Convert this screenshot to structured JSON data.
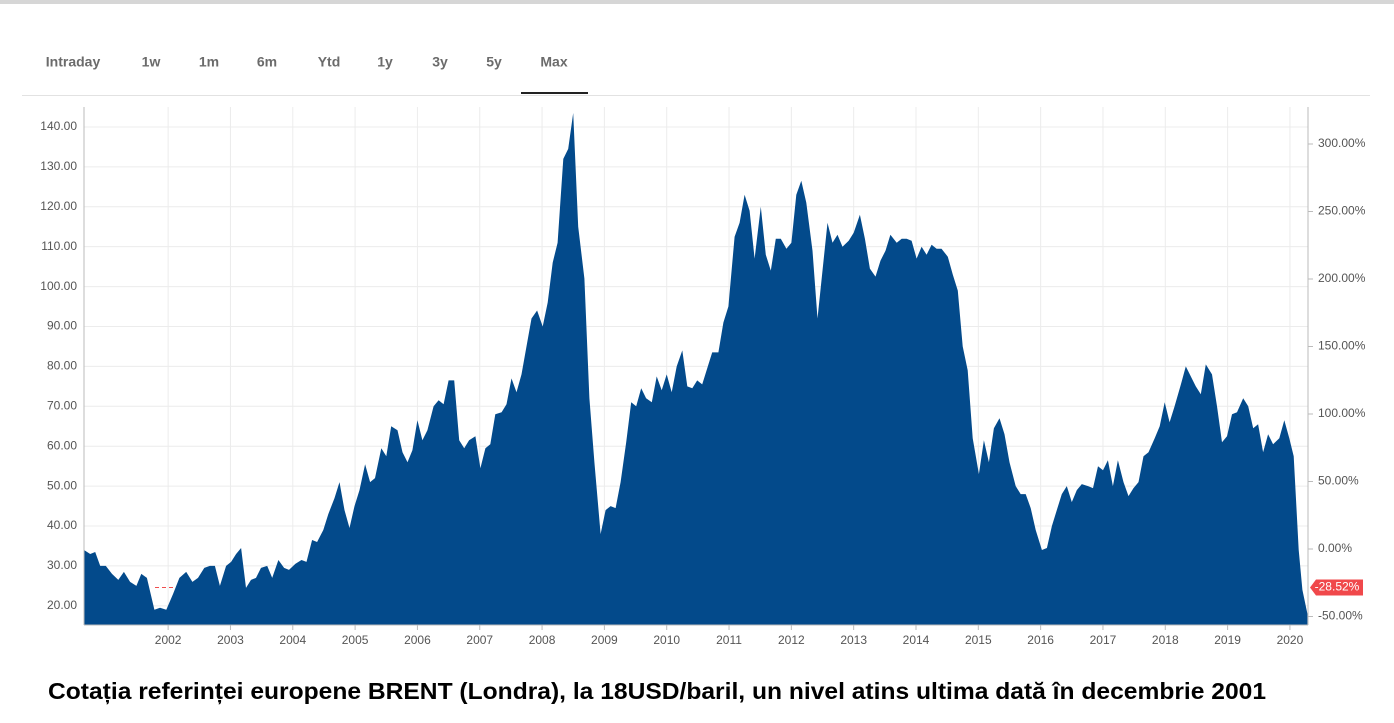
{
  "tabs": [
    "Intraday",
    "1w",
    "1m",
    "6m",
    "Ytd",
    "1y",
    "3y",
    "5y",
    "Max"
  ],
  "active_tab_index": 8,
  "chart_data": {
    "type": "area",
    "color": "#034a8b",
    "x": [
      2000.65,
      2000.75,
      2000.83,
      2000.91,
      2001.0,
      2001.1,
      2001.2,
      2001.29,
      2001.39,
      2001.49,
      2001.57,
      2001.66,
      2001.78,
      2001.87,
      2001.97,
      2002.08,
      2002.18,
      2002.29,
      2002.39,
      2002.48,
      2002.58,
      2002.67,
      2002.75,
      2002.83,
      2002.93,
      2003.01,
      2003.09,
      2003.17,
      2003.25,
      2003.33,
      2003.41,
      2003.49,
      2003.59,
      2003.67,
      2003.77,
      2003.86,
      2003.94,
      2004.04,
      2004.14,
      2004.22,
      2004.31,
      2004.39,
      2004.49,
      2004.57,
      2004.67,
      2004.75,
      2004.83,
      2004.91,
      2004.99,
      2005.07,
      2005.16,
      2005.24,
      2005.32,
      2005.42,
      2005.5,
      2005.58,
      2005.68,
      2005.76,
      2005.84,
      2005.92,
      2006.0,
      2006.08,
      2006.16,
      2006.26,
      2006.34,
      2006.42,
      2006.5,
      2006.59,
      2006.67,
      2006.75,
      2006.83,
      2006.93,
      2007.01,
      2007.09,
      2007.17,
      2007.25,
      2007.35,
      2007.43,
      2007.51,
      2007.59,
      2007.67,
      2007.75,
      2007.83,
      2007.92,
      2008.01,
      2008.09,
      2008.17,
      2008.25,
      2008.34,
      2008.42,
      2008.5,
      2008.58,
      2008.68,
      2008.76,
      2008.84,
      2008.94,
      2009.02,
      2009.1,
      2009.18,
      2009.26,
      2009.35,
      2009.43,
      2009.51,
      2009.59,
      2009.67,
      2009.76,
      2009.84,
      2009.92,
      2010.0,
      2010.08,
      2010.16,
      2010.25,
      2010.33,
      2010.41,
      2010.49,
      2010.57,
      2010.65,
      2010.73,
      2010.83,
      2010.91,
      2010.99,
      2011.09,
      2011.17,
      2011.25,
      2011.33,
      2011.41,
      2011.51,
      2011.59,
      2011.67,
      2011.75,
      2011.83,
      2011.92,
      2012.0,
      2012.08,
      2012.16,
      2012.24,
      2012.34,
      2012.42,
      2012.5,
      2012.58,
      2012.66,
      2012.74,
      2012.82,
      2012.92,
      2013.0,
      2013.1,
      2013.18,
      2013.26,
      2013.35,
      2013.43,
      2013.51,
      2013.59,
      2013.69,
      2013.77,
      2013.85,
      2013.93,
      2014.01,
      2014.09,
      2014.17,
      2014.25,
      2014.33,
      2014.41,
      2014.51,
      2014.59,
      2014.67,
      2014.75,
      2014.83,
      2014.91,
      2015.01,
      2015.09,
      2015.17,
      2015.25,
      2015.34,
      2015.42,
      2015.5,
      2015.6,
      2015.68,
      2015.76,
      2015.84,
      2015.92,
      2016.02,
      2016.1,
      2016.18,
      2016.26,
      2016.34,
      2016.42,
      2016.5,
      2016.58,
      2016.66,
      2016.76,
      2016.84,
      2016.92,
      2017.0,
      2017.08,
      2017.16,
      2017.24,
      2017.33,
      2017.41,
      2017.49,
      2017.57,
      2017.65,
      2017.73,
      2017.83,
      2017.91,
      2017.99,
      2018.07,
      2018.15,
      2018.25,
      2018.33,
      2018.41,
      2018.49,
      2018.57,
      2018.65,
      2018.75,
      2018.83,
      2018.91,
      2018.99,
      2019.07,
      2019.15,
      2019.25,
      2019.33,
      2019.41,
      2019.49,
      2019.57,
      2019.65,
      2019.73,
      2019.83,
      2019.91,
      2019.99,
      2020.06,
      2020.14,
      2020.2,
      2020.28
    ],
    "values": [
      34,
      33,
      33.5,
      30,
      30,
      28,
      26.5,
      28.5,
      26,
      25,
      28,
      27,
      19,
      19.5,
      19,
      23,
      27,
      28.5,
      26,
      27,
      29.5,
      30,
      30,
      25,
      30,
      31,
      33,
      34.5,
      24.5,
      26.5,
      27,
      29.5,
      30,
      27,
      31.5,
      29.5,
      29,
      30.5,
      31.5,
      31,
      36.5,
      36,
      39,
      43,
      47,
      51,
      44,
      39.5,
      45,
      49,
      55.5,
      51,
      52,
      59.5,
      57.5,
      65,
      64,
      58.5,
      56,
      59,
      66.5,
      61.5,
      64,
      70,
      71.5,
      70.5,
      76.5,
      76.5,
      61.5,
      59.5,
      61.5,
      62.5,
      54.5,
      59.5,
      60.5,
      68,
      68.5,
      70.5,
      77,
      73.5,
      78,
      85,
      92,
      94,
      90,
      96,
      106,
      111,
      132,
      134.5,
      143.5,
      115,
      102,
      72,
      56,
      38,
      44,
      45,
      44.5,
      51,
      61,
      71,
      70,
      74.5,
      72,
      71,
      77.5,
      74,
      78,
      73.5,
      80,
      84,
      75,
      74.5,
      76.5,
      75.5,
      79.5,
      83.5,
      83.5,
      91,
      95,
      112.5,
      116,
      123,
      119,
      107,
      120,
      108,
      104,
      112,
      112,
      109.5,
      111,
      123,
      126.5,
      121,
      109,
      92,
      104,
      116,
      111,
      113,
      110,
      111.5,
      113.5,
      118,
      112,
      104.5,
      102.5,
      106.5,
      109,
      113,
      111,
      112,
      112,
      111.5,
      107,
      110,
      108,
      110.5,
      109.5,
      109.5,
      107.5,
      103,
      99,
      85,
      79,
      62,
      53,
      61.5,
      56,
      64.5,
      67,
      63,
      56,
      50,
      48,
      48,
      44.5,
      39,
      34,
      34.5,
      40,
      44,
      48,
      50,
      46,
      49,
      50.5,
      50,
      49.5,
      55,
      54,
      56.5,
      50,
      56.5,
      51,
      47.5,
      49.5,
      51,
      57.5,
      58.5,
      62,
      65,
      71,
      66,
      70,
      75.5,
      80,
      77.5,
      75,
      73,
      80.5,
      78,
      70,
      61,
      62.5,
      68,
      68.5,
      72,
      70,
      64.5,
      65.5,
      58.5,
      63,
      60.5,
      62,
      66.5,
      62,
      57.5,
      34,
      24,
      18
    ],
    "xlim": [
      2000.65,
      2020.29
    ],
    "xticks": [
      2002,
      2003,
      2004,
      2005,
      2006,
      2007,
      2008,
      2009,
      2010,
      2011,
      2012,
      2013,
      2014,
      2015,
      2016,
      2017,
      2018,
      2019,
      2020
    ],
    "ylim": [
      15.2,
      145
    ],
    "yticks": [
      {
        "value": 20,
        "label": "20.00"
      },
      {
        "value": 30,
        "label": "30.00"
      },
      {
        "value": 40,
        "label": "40.00"
      },
      {
        "value": 50,
        "label": "50.00"
      },
      {
        "value": 60,
        "label": "60.00"
      },
      {
        "value": 70,
        "label": "70.00"
      },
      {
        "value": 80,
        "label": "80.00"
      },
      {
        "value": 90,
        "label": "90.00"
      },
      {
        "value": 100,
        "label": "100.00"
      },
      {
        "value": 110,
        "label": "110.00"
      },
      {
        "value": 120,
        "label": "120.00"
      },
      {
        "value": 130,
        "label": "130.00"
      },
      {
        "value": 140,
        "label": "140.00"
      }
    ],
    "y2lim": [
      -56.3,
      327.4
    ],
    "y2ticks": [
      {
        "value": -50,
        "label": "-50.00%"
      },
      {
        "value": 0,
        "label": "0.00%"
      },
      {
        "value": 50,
        "label": "50.00%"
      },
      {
        "value": 100,
        "label": "100.00%"
      },
      {
        "value": 150,
        "label": "150.00%"
      },
      {
        "value": 200,
        "label": "200.00%"
      },
      {
        "value": 250,
        "label": "250.00%"
      },
      {
        "value": 300,
        "label": "300.00%"
      }
    ],
    "annotation": {
      "value": -28.52,
      "label": "-28.52%",
      "axis": "y2"
    },
    "grid": true
  },
  "caption": "Cotația referinței europene BRENT (Londra), la 18USD/baril, un nivel atins ultima dată în decembrie 2001"
}
